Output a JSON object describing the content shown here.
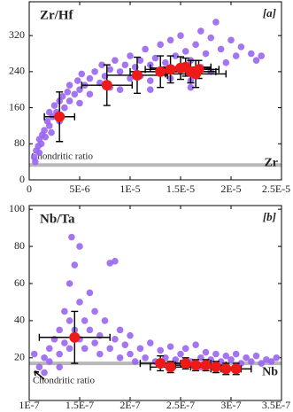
{
  "chart_data": [
    {
      "type": "scatter",
      "title": "Zr/Hf",
      "panel_label": "[a]",
      "x_label": "Zr",
      "xlim": [
        0,
        2.5e-05
      ],
      "ylim": [
        0,
        395
      ],
      "xticks": [
        0,
        {
          "value": 5e-06,
          "label": "5E-6"
        },
        {
          "value": 1e-05,
          "label": "1E-5"
        },
        {
          "value": 1.5e-05,
          "label": "1.5E-5"
        },
        {
          "value": 2e-05,
          "label": "2E-5"
        },
        {
          "value": 2.5e-05,
          "label": "2.5E-5"
        }
      ],
      "yticks": [
        0,
        80,
        160,
        240,
        320
      ],
      "reference_line": {
        "value": 33,
        "label": "Chondritic ratio",
        "color": "#b8b8b8"
      },
      "series": [
        {
          "color": "#9a66ee",
          "x": [
            5e-07,
            7e-07,
            9e-07,
            1e-06,
            1.2e-06,
            1.3e-06,
            1.5e-06,
            1.6e-06,
            1.8e-06,
            2e-06,
            2e-06,
            2.3e-06,
            2.5e-06,
            2.7e-06,
            3e-06,
            3e-06,
            3.3e-06,
            3.5e-06,
            3.8e-06,
            4e-06,
            4e-06,
            4.5e-06,
            4.8e-06,
            5e-06,
            5.2e-06,
            5.5e-06,
            6e-06,
            6e-06,
            6.5e-06,
            7e-06,
            7.2e-06,
            7.5e-06,
            8e-06,
            8e-06,
            8.5e-06,
            9e-06,
            9.5e-06,
            1e-05,
            1e-05,
            1.05e-05,
            1.1e-05,
            1.1e-05,
            1.15e-05,
            1.2e-05,
            1.2e-05,
            1.25e-05,
            1.3e-05,
            1.3e-05,
            1.35e-05,
            1.4e-05,
            1.4e-05,
            1.45e-05,
            1.5e-05,
            1.5e-05,
            1.55e-05,
            1.6e-05,
            1.6e-05,
            1.65e-05,
            1.7e-05,
            1.7e-05,
            1.75e-05,
            1.8e-05,
            1.8e-05,
            1.85e-05,
            1.9e-05,
            1.95e-05,
            2e-05,
            2.05e-05,
            2.1e-05,
            2.2e-05,
            2.25e-05,
            2.3e-05,
            1e-06,
            6e-07,
            2.2e-06,
            5e-06,
            9e-06,
            1.2e-05,
            1.6e-05
          ],
          "y": [
            50,
            65,
            75,
            90,
            80,
            100,
            110,
            95,
            130,
            120,
            150,
            140,
            165,
            150,
            175,
            130,
            185,
            160,
            195,
            175,
            210,
            190,
            220,
            200,
            235,
            210,
            225,
            190,
            240,
            215,
            255,
            230,
            245,
            205,
            265,
            240,
            255,
            225,
            275,
            250,
            265,
            230,
            290,
            255,
            220,
            270,
            300,
            240,
            260,
            310,
            225,
            275,
            250,
            320,
            285,
            265,
            220,
            300,
            330,
            250,
            280,
            315,
            240,
            350,
            290,
            260,
            310,
            275,
            295,
            280,
            265,
            275,
            60,
            40,
            105,
            170,
            200,
            200,
            205
          ]
        },
        {
          "color": "#ee1a1a",
          "x": [
            3e-06,
            7.7e-06,
            1.07e-05,
            1.3e-05,
            1.4e-05,
            1.5e-05,
            1.55e-05,
            1.6e-05,
            1.65e-05,
            1.68e-05
          ],
          "y": [
            140,
            210,
            232,
            240,
            245,
            248,
            250,
            240,
            235,
            245
          ],
          "xerr": [
            1.5e-06,
            2.5e-06,
            3e-06,
            3e-06,
            2.5e-06,
            3e-06,
            2.5e-06,
            2.5e-06,
            3e-06,
            2e-06
          ],
          "yerr": [
            55,
            45,
            40,
            35,
            30,
            25,
            20,
            25,
            30,
            20
          ]
        }
      ]
    },
    {
      "type": "scatter",
      "title": "Nb/Ta",
      "panel_label": "[b]",
      "x_label": "Nb",
      "xlim": [
        1e-07,
        3.5e-07
      ],
      "ylim": [
        -3,
        102
      ],
      "xticks": [
        {
          "value": 1e-07,
          "label": "1E-7"
        },
        {
          "value": 1.5e-07,
          "label": "1.5E-7"
        },
        {
          "value": 2e-07,
          "label": "2E-7"
        },
        {
          "value": 2.5e-07,
          "label": "2.5E-7"
        },
        {
          "value": 3e-07,
          "label": "3E-7"
        },
        {
          "value": 3.5e-07,
          "label": "3.5E-7"
        }
      ],
      "yticks": [
        20,
        40,
        60,
        80,
        100
      ],
      "reference_line": {
        "value": 17,
        "label": "Chondritic ratio",
        "color": "#b8b8b8"
      },
      "series": [
        {
          "color": "#9a66ee",
          "x": [
            1.05e-07,
            1.1e-07,
            1.15e-07,
            1.2e-07,
            1.2e-07,
            1.25e-07,
            1.3e-07,
            1.3e-07,
            1.35e-07,
            1.35e-07,
            1.4e-07,
            1.4e-07,
            1.4e-07,
            1.42e-07,
            1.45e-07,
            1.45e-07,
            1.5e-07,
            1.5e-07,
            1.5e-07,
            1.55e-07,
            1.55e-07,
            1.6e-07,
            1.6e-07,
            1.65e-07,
            1.65e-07,
            1.7e-07,
            1.7e-07,
            1.75e-07,
            1.8e-07,
            1.8e-07,
            1.85e-07,
            1.85e-07,
            1.9e-07,
            1.9e-07,
            1.95e-07,
            2e-07,
            2e-07,
            2.05e-07,
            2.1e-07,
            2.15e-07,
            2.2e-07,
            2.25e-07,
            2.3e-07,
            2.35e-07,
            2.4e-07,
            2.45e-07,
            2.5e-07,
            2.55e-07,
            2.6e-07,
            2.65e-07,
            2.7e-07,
            2.75e-07,
            2.8e-07,
            2.85e-07,
            2.9e-07,
            2.95e-07,
            3e-07,
            3.05e-07,
            3.1e-07,
            3.15e-07,
            3.2e-07,
            3.25e-07,
            3.3e-07,
            3.35e-07,
            3.4e-07,
            3.45e-07,
            1.15e-07,
            1.3e-07,
            2.4e-07,
            2.7e-07
          ],
          "y": [
            22,
            15,
            20,
            25,
            18,
            30,
            22,
            35,
            28,
            45,
            40,
            25,
            60,
            85,
            70,
            35,
            50,
            30,
            80,
            40,
            25,
            35,
            55,
            28,
            45,
            32,
            22,
            40,
            25,
            71,
            72,
            30,
            20,
            35,
            27,
            22,
            32,
            18,
            25,
            20,
            28,
            18,
            24,
            20,
            26,
            19,
            22,
            25,
            18,
            27,
            20,
            23,
            19,
            22,
            18,
            21,
            19,
            22,
            17,
            20,
            18,
            21,
            17,
            19,
            18,
            20,
            12,
            15,
            16,
            15
          ]
        },
        {
          "color": "#ee1a1a",
          "x": [
            1.45e-07,
            2.3e-07,
            2.4e-07,
            2.55e-07,
            2.65e-07,
            2.75e-07,
            2.85e-07,
            2.95e-07,
            3.05e-07
          ],
          "y": [
            31,
            17,
            15,
            17,
            16,
            16,
            15,
            14,
            14
          ],
          "xerr": [
            3.5e-08,
            2e-08,
            2e-08,
            2.5e-08,
            2e-08,
            2e-08,
            2e-08,
            1.5e-08,
            1.5e-08
          ],
          "yerr": [
            14,
            4,
            3,
            3,
            3,
            3,
            3,
            3,
            3
          ]
        }
      ]
    }
  ]
}
